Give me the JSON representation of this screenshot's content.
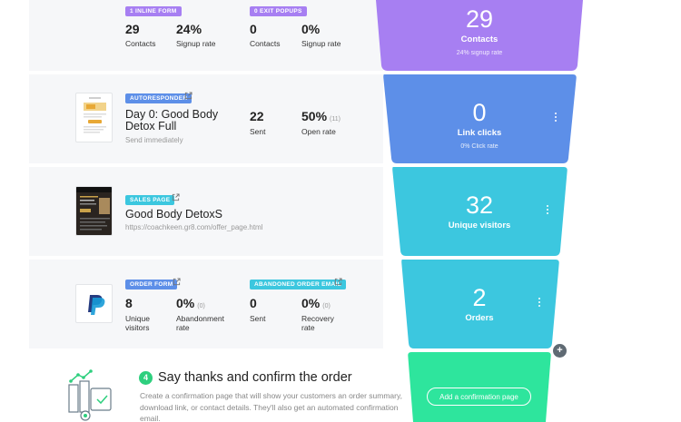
{
  "colors": {
    "purple": "#a77ff2",
    "blue": "#5d8fe8",
    "teal": "#3cc7df",
    "green": "#2ee59d",
    "panel": "#f6f7f9"
  },
  "row1": {
    "badge_inline": "1 INLINE FORM",
    "badge_exit": "0 EXIT POPUPS",
    "inline_contacts_value": "29",
    "inline_contacts_label": "Contacts",
    "inline_rate_value": "24%",
    "inline_rate_label": "Signup rate",
    "exit_contacts_value": "0",
    "exit_contacts_label": "Contacts",
    "exit_rate_value": "0%",
    "exit_rate_label": "Signup rate"
  },
  "row2": {
    "badge": "AUTORESPONDER",
    "title": "Day 0: Good Body Detox Full",
    "subtitle": "Send immediately",
    "sent_value": "22",
    "sent_label": "Sent",
    "open_value": "50%",
    "open_count": "(11)",
    "open_label": "Open rate"
  },
  "row3": {
    "badge": "SALES PAGE",
    "title": "Good Body DetoxS",
    "url": "https://coachkeen.gr8.com/offer_page.html"
  },
  "row4": {
    "badge_order": "ORDER FORM",
    "badge_abandoned": "ABANDONED ORDER EMAIL",
    "unique_value": "8",
    "unique_label": "Unique visitors",
    "abandon_value": "0%",
    "abandon_count": "(0)",
    "abandon_label": "Abandonment rate",
    "sent_value": "0",
    "sent_label": "Sent",
    "recovery_value": "0%",
    "recovery_count": "(0)",
    "recovery_label": "Recovery rate"
  },
  "funnel": {
    "contacts_value": "29",
    "contacts_label": "Contacts",
    "contacts_sub": "24% signup rate",
    "clicks_value": "0",
    "clicks_label": "Link clicks",
    "clicks_sub": "0% Click rate",
    "visitors_value": "32",
    "visitors_label": "Unique visitors",
    "orders_value": "2",
    "orders_label": "Orders",
    "add_button": "Add a confirmation page",
    "plus": "+"
  },
  "step": {
    "number": "4",
    "title": "Say thanks and confirm the order",
    "description": "Create a confirmation page that will show your customers an order summary, download link, or contact details. They'll also get an automated confirmation email."
  }
}
